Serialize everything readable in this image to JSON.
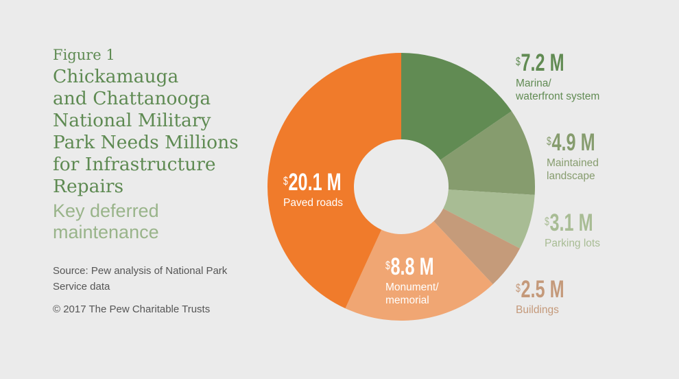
{
  "figure_label": "Figure 1",
  "title_lines": [
    "Chickamauga",
    "and Chattanooga",
    "National Military",
    "Park Needs Millions",
    "for Infrastructure",
    "Repairs"
  ],
  "subtitle_lines": [
    "Key deferred",
    "maintenance"
  ],
  "source_lines": [
    "Source: Pew analysis of National Park",
    "Service data"
  ],
  "copyright": "© 2017 The Pew Charitable Trusts",
  "currency_symbol": "$",
  "chart_data": {
    "type": "pie",
    "donut": true,
    "unit": "M",
    "slices": [
      {
        "label": "Marina/ waterfront system",
        "label_lines": [
          "Marina/",
          "waterfront system"
        ],
        "value": 7.2,
        "value_text": "7.2 M",
        "color": "#618b53",
        "label_color": "#618b53"
      },
      {
        "label": "Maintained landscape",
        "label_lines": [
          "Maintained",
          "landscape"
        ],
        "value": 4.9,
        "value_text": "4.9 M",
        "color": "#869c6e",
        "label_color": "#869c6e"
      },
      {
        "label": "Parking lots",
        "label_lines": [
          "Parking lots"
        ],
        "value": 3.1,
        "value_text": "3.1 M",
        "color": "#a8bc94",
        "label_color": "#a8bc94"
      },
      {
        "label": "Buildings",
        "label_lines": [
          "Buildings"
        ],
        "value": 2.5,
        "value_text": "2.5 M",
        "color": "#c59b7a",
        "label_color": "#c4997a"
      },
      {
        "label": "Monument/ memorial",
        "label_lines": [
          "Monument/",
          "memorial"
        ],
        "value": 8.8,
        "value_text": "8.8 M",
        "color": "#f0a673",
        "label_color": "#ffffff"
      },
      {
        "label": "Paved roads",
        "label_lines": [
          "Paved roads"
        ],
        "value": 20.1,
        "value_text": "20.1 M",
        "color": "#f07b2b",
        "label_color": "#ffffff"
      }
    ]
  }
}
